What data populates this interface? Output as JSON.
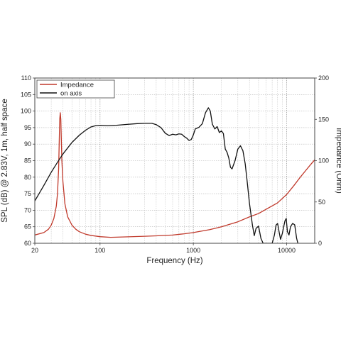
{
  "chart_data": {
    "type": "line",
    "title": "",
    "xlabel": "Frequency (Hz)",
    "ylabel_left": "SPL (dB) @ 2.83V, 1m, half space",
    "ylabel_right": "Impedance (Ohm)",
    "x_scale": "log",
    "xlim": [
      20,
      20000
    ],
    "ylim_left": [
      60,
      110
    ],
    "ylim_right": [
      0,
      200
    ],
    "x_ticks": [
      20,
      100,
      1000,
      10000
    ],
    "x_tick_labels": [
      "20",
      "100",
      "1000",
      "10000"
    ],
    "y_left_ticks": [
      60,
      65,
      70,
      75,
      80,
      85,
      90,
      95,
      100,
      105,
      110
    ],
    "y_left_tick_labels": [
      "60",
      "65",
      "70",
      "75",
      "80",
      "85",
      "90",
      "95",
      "100",
      "105",
      "110"
    ],
    "y_right_ticks": [
      0,
      50,
      100,
      150,
      200
    ],
    "y_right_tick_labels": [
      "0",
      "50",
      "100",
      "150",
      "200"
    ],
    "grid": true,
    "legend_position": "top-left",
    "series": [
      {
        "name": "Impedance",
        "axis": "right",
        "color": "#c0392b",
        "points": [
          [
            20,
            10
          ],
          [
            25,
            13
          ],
          [
            28,
            17
          ],
          [
            30,
            22
          ],
          [
            32,
            30
          ],
          [
            34,
            45
          ],
          [
            35,
            60
          ],
          [
            36,
            90
          ],
          [
            37,
            150
          ],
          [
            37.5,
            158
          ],
          [
            38,
            150
          ],
          [
            39,
            100
          ],
          [
            40,
            75
          ],
          [
            42,
            48
          ],
          [
            45,
            32
          ],
          [
            50,
            22
          ],
          [
            55,
            17
          ],
          [
            60,
            14
          ],
          [
            70,
            11
          ],
          [
            80,
            9.5
          ],
          [
            100,
            8
          ],
          [
            130,
            7.2
          ],
          [
            200,
            7.8
          ],
          [
            300,
            8.5
          ],
          [
            400,
            9
          ],
          [
            600,
            10
          ],
          [
            800,
            11.5
          ],
          [
            1000,
            13
          ],
          [
            1500,
            16.5
          ],
          [
            2000,
            20
          ],
          [
            3000,
            26
          ],
          [
            4000,
            32
          ],
          [
            5000,
            36
          ],
          [
            6000,
            41
          ],
          [
            8000,
            49
          ],
          [
            10000,
            59
          ],
          [
            12000,
            70
          ],
          [
            14000,
            80
          ],
          [
            16000,
            88
          ],
          [
            18000,
            95
          ],
          [
            20000,
            101
          ]
        ]
      },
      {
        "name": "on axis",
        "axis": "left",
        "color": "#111111",
        "points": [
          [
            20,
            72.8
          ],
          [
            25,
            77.5
          ],
          [
            30,
            81.5
          ],
          [
            35,
            84.5
          ],
          [
            40,
            87
          ],
          [
            50,
            90.5
          ],
          [
            60,
            92.7
          ],
          [
            70,
            94.2
          ],
          [
            80,
            95.2
          ],
          [
            90,
            95.6
          ],
          [
            100,
            95.7
          ],
          [
            120,
            95.6
          ],
          [
            150,
            95.7
          ],
          [
            200,
            96
          ],
          [
            250,
            96.2
          ],
          [
            300,
            96.3
          ],
          [
            360,
            96.3
          ],
          [
            400,
            95.9
          ],
          [
            450,
            95
          ],
          [
            500,
            93.3
          ],
          [
            550,
            92.6
          ],
          [
            600,
            93
          ],
          [
            650,
            92.8
          ],
          [
            700,
            93.1
          ],
          [
            750,
            93
          ],
          [
            800,
            92.3
          ],
          [
            850,
            91.8
          ],
          [
            900,
            91.1
          ],
          [
            950,
            91.4
          ],
          [
            1000,
            92.8
          ],
          [
            1050,
            94.6
          ],
          [
            1150,
            95.1
          ],
          [
            1250,
            96.2
          ],
          [
            1350,
            99.5
          ],
          [
            1450,
            101
          ],
          [
            1520,
            100
          ],
          [
            1600,
            96
          ],
          [
            1700,
            94.6
          ],
          [
            1800,
            95.3
          ],
          [
            1900,
            93.5
          ],
          [
            2000,
            94
          ],
          [
            2100,
            93.2
          ],
          [
            2200,
            88.5
          ],
          [
            2300,
            87.5
          ],
          [
            2400,
            85.8
          ],
          [
            2500,
            83
          ],
          [
            2600,
            82.5
          ],
          [
            2800,
            85
          ],
          [
            3000,
            88.5
          ],
          [
            3200,
            89.5
          ],
          [
            3400,
            88
          ],
          [
            3600,
            84
          ],
          [
            3800,
            78
          ],
          [
            4000,
            72
          ],
          [
            4300,
            65.5
          ],
          [
            4500,
            62.3
          ],
          [
            4700,
            64.5
          ],
          [
            5000,
            65.2
          ],
          [
            5300,
            61.5
          ],
          [
            5600,
            60
          ],
          [
            7000,
            60
          ],
          [
            7400,
            62.5
          ],
          [
            7700,
            65.5
          ],
          [
            8000,
            66
          ],
          [
            8300,
            63.5
          ],
          [
            8600,
            61.2
          ],
          [
            9000,
            63
          ],
          [
            9300,
            65
          ],
          [
            9600,
            66.8
          ],
          [
            9900,
            67.5
          ],
          [
            10200,
            63.5
          ],
          [
            10600,
            62.5
          ],
          [
            11000,
            65
          ],
          [
            11600,
            66
          ],
          [
            12200,
            65.6
          ],
          [
            12800,
            61.5
          ],
          [
            13200,
            60
          ]
        ]
      }
    ]
  }
}
